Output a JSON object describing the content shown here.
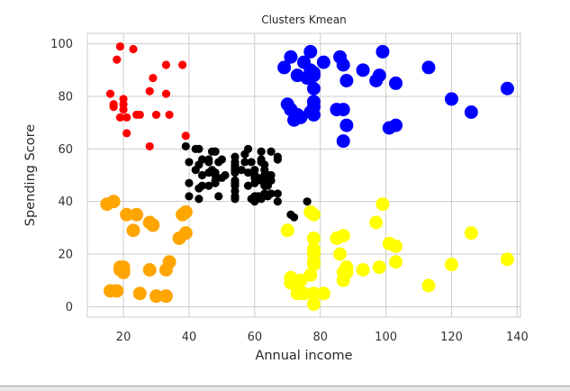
{
  "chart_data": {
    "type": "scatter",
    "title": "Clusters Kmean",
    "xlabel": "Annual income",
    "ylabel": "Spending Score",
    "xlim": [
      9,
      141
    ],
    "ylim": [
      -4,
      104
    ],
    "xticks": [
      "20",
      "40",
      "60",
      "80",
      "100",
      "120",
      "140"
    ],
    "yticks": [
      "0",
      "20",
      "40",
      "60",
      "80",
      "100"
    ],
    "grid": true,
    "series": [
      {
        "color": "#ff0000",
        "marker_size": "small",
        "points": [
          [
            15,
            39
          ],
          [
            16,
            81
          ],
          [
            17,
            76
          ],
          [
            18,
            94
          ],
          [
            19,
            72
          ],
          [
            19,
            99
          ],
          [
            20,
            79
          ],
          [
            20,
            77
          ],
          [
            21,
            66
          ],
          [
            21,
            72
          ],
          [
            23,
            98
          ],
          [
            24,
            73
          ],
          [
            25,
            73
          ],
          [
            28,
            82
          ],
          [
            28,
            61
          ],
          [
            29,
            87
          ],
          [
            30,
            73
          ],
          [
            33,
            92
          ],
          [
            33,
            81
          ],
          [
            34,
            73
          ],
          [
            38,
            92
          ],
          [
            39,
            65
          ],
          [
            17,
            77
          ],
          [
            20,
            75
          ]
        ]
      },
      {
        "color": "#ffa500",
        "marker_size": "large",
        "points": [
          [
            15,
            39
          ],
          [
            16,
            6
          ],
          [
            17,
            40
          ],
          [
            18,
            6
          ],
          [
            19,
            14
          ],
          [
            19,
            15
          ],
          [
            20,
            13
          ],
          [
            20,
            15
          ],
          [
            21,
            35
          ],
          [
            23,
            29
          ],
          [
            24,
            35
          ],
          [
            25,
            5
          ],
          [
            28,
            14
          ],
          [
            28,
            32
          ],
          [
            29,
            31
          ],
          [
            30,
            4
          ],
          [
            33,
            4
          ],
          [
            33,
            14
          ],
          [
            34,
            17
          ],
          [
            37,
            26
          ],
          [
            38,
            35
          ],
          [
            39,
            28
          ],
          [
            39,
            36
          ],
          [
            20,
            14
          ]
        ]
      },
      {
        "color": "#000000",
        "marker_size": "small",
        "points": [
          [
            39,
            61
          ],
          [
            40,
            55
          ],
          [
            40,
            47
          ],
          [
            40,
            42
          ],
          [
            42,
            52
          ],
          [
            42,
            60
          ],
          [
            43,
            54
          ],
          [
            43,
            60
          ],
          [
            43,
            45
          ],
          [
            43,
            41
          ],
          [
            44,
            50
          ],
          [
            44,
            46
          ],
          [
            46,
            51
          ],
          [
            46,
            46
          ],
          [
            46,
            56
          ],
          [
            46,
            55
          ],
          [
            47,
            52
          ],
          [
            47,
            59
          ],
          [
            48,
            51
          ],
          [
            48,
            59
          ],
          [
            48,
            50
          ],
          [
            48,
            48
          ],
          [
            48,
            59
          ],
          [
            48,
            47
          ],
          [
            49,
            55
          ],
          [
            49,
            42
          ],
          [
            50,
            49
          ],
          [
            50,
            56
          ],
          [
            54,
            47
          ],
          [
            54,
            54
          ],
          [
            54,
            53
          ],
          [
            54,
            48
          ],
          [
            54,
            52
          ],
          [
            54,
            42
          ],
          [
            54,
            51
          ],
          [
            54,
            55
          ],
          [
            54,
            41
          ],
          [
            54,
            44
          ],
          [
            54,
            57
          ],
          [
            54,
            46
          ],
          [
            57,
            58
          ],
          [
            57,
            55
          ],
          [
            58,
            60
          ],
          [
            58,
            46
          ],
          [
            59,
            55
          ],
          [
            59,
            41
          ],
          [
            60,
            49
          ],
          [
            60,
            40
          ],
          [
            60,
            42
          ],
          [
            60,
            52
          ],
          [
            60,
            47
          ],
          [
            60,
            50
          ],
          [
            61,
            42
          ],
          [
            61,
            49
          ],
          [
            62,
            41
          ],
          [
            62,
            48
          ],
          [
            62,
            59
          ],
          [
            62,
            55
          ],
          [
            62,
            56
          ],
          [
            62,
            42
          ],
          [
            63,
            50
          ],
          [
            63,
            46
          ],
          [
            63,
            43
          ],
          [
            63,
            48
          ],
          [
            63,
            52
          ],
          [
            63,
            54
          ],
          [
            64,
            42
          ],
          [
            64,
            46
          ],
          [
            65,
            48
          ],
          [
            65,
            50
          ],
          [
            65,
            43
          ],
          [
            65,
            59
          ],
          [
            67,
            43
          ],
          [
            67,
            57
          ],
          [
            67,
            56
          ],
          [
            67,
            40
          ],
          [
            71,
            35
          ],
          [
            72,
            34
          ],
          [
            76,
            40
          ],
          [
            44,
            56
          ],
          [
            51,
            50
          ],
          [
            56,
            52
          ],
          [
            58,
            51
          ],
          [
            64,
            50
          ]
        ]
      },
      {
        "color": "#0000ff",
        "marker_size": "large",
        "points": [
          [
            69,
            91
          ],
          [
            70,
            77
          ],
          [
            71,
            95
          ],
          [
            71,
            75
          ],
          [
            71,
            75
          ],
          [
            72,
            71
          ],
          [
            73,
            88
          ],
          [
            73,
            73
          ],
          [
            74,
            72
          ],
          [
            75,
            93
          ],
          [
            76,
            87
          ],
          [
            77,
            97
          ],
          [
            77,
            74
          ],
          [
            77,
            90
          ],
          [
            78,
            88
          ],
          [
            78,
            76
          ],
          [
            78,
            89
          ],
          [
            78,
            78
          ],
          [
            78,
            73
          ],
          [
            78,
            83
          ],
          [
            81,
            93
          ],
          [
            85,
            75
          ],
          [
            86,
            95
          ],
          [
            87,
            63
          ],
          [
            87,
            75
          ],
          [
            87,
            92
          ],
          [
            88,
            86
          ],
          [
            88,
            69
          ],
          [
            93,
            90
          ],
          [
            97,
            86
          ],
          [
            98,
            88
          ],
          [
            99,
            97
          ],
          [
            101,
            68
          ],
          [
            103,
            85
          ],
          [
            103,
            69
          ],
          [
            113,
            91
          ],
          [
            120,
            79
          ],
          [
            126,
            74
          ],
          [
            137,
            83
          ]
        ]
      },
      {
        "color": "#ffff00",
        "marker_size": "large",
        "points": [
          [
            70,
            29
          ],
          [
            71,
            11
          ],
          [
            71,
            9
          ],
          [
            73,
            5
          ],
          [
            73,
            7
          ],
          [
            74,
            10
          ],
          [
            75,
            5
          ],
          [
            77,
            12
          ],
          [
            77,
            36
          ],
          [
            78,
            22
          ],
          [
            78,
            17
          ],
          [
            78,
            20
          ],
          [
            78,
            16
          ],
          [
            78,
            1
          ],
          [
            78,
            1
          ],
          [
            78,
            35
          ],
          [
            78,
            5
          ],
          [
            78,
            26
          ],
          [
            78,
            20
          ],
          [
            81,
            5
          ],
          [
            85,
            26
          ],
          [
            86,
            20
          ],
          [
            87,
            27
          ],
          [
            87,
            13
          ],
          [
            87,
            10
          ],
          [
            88,
            13
          ],
          [
            88,
            15
          ],
          [
            93,
            14
          ],
          [
            97,
            32
          ],
          [
            98,
            15
          ],
          [
            99,
            39
          ],
          [
            101,
            24
          ],
          [
            103,
            17
          ],
          [
            103,
            23
          ],
          [
            113,
            8
          ],
          [
            120,
            16
          ],
          [
            126,
            28
          ],
          [
            137,
            18
          ]
        ]
      }
    ]
  }
}
